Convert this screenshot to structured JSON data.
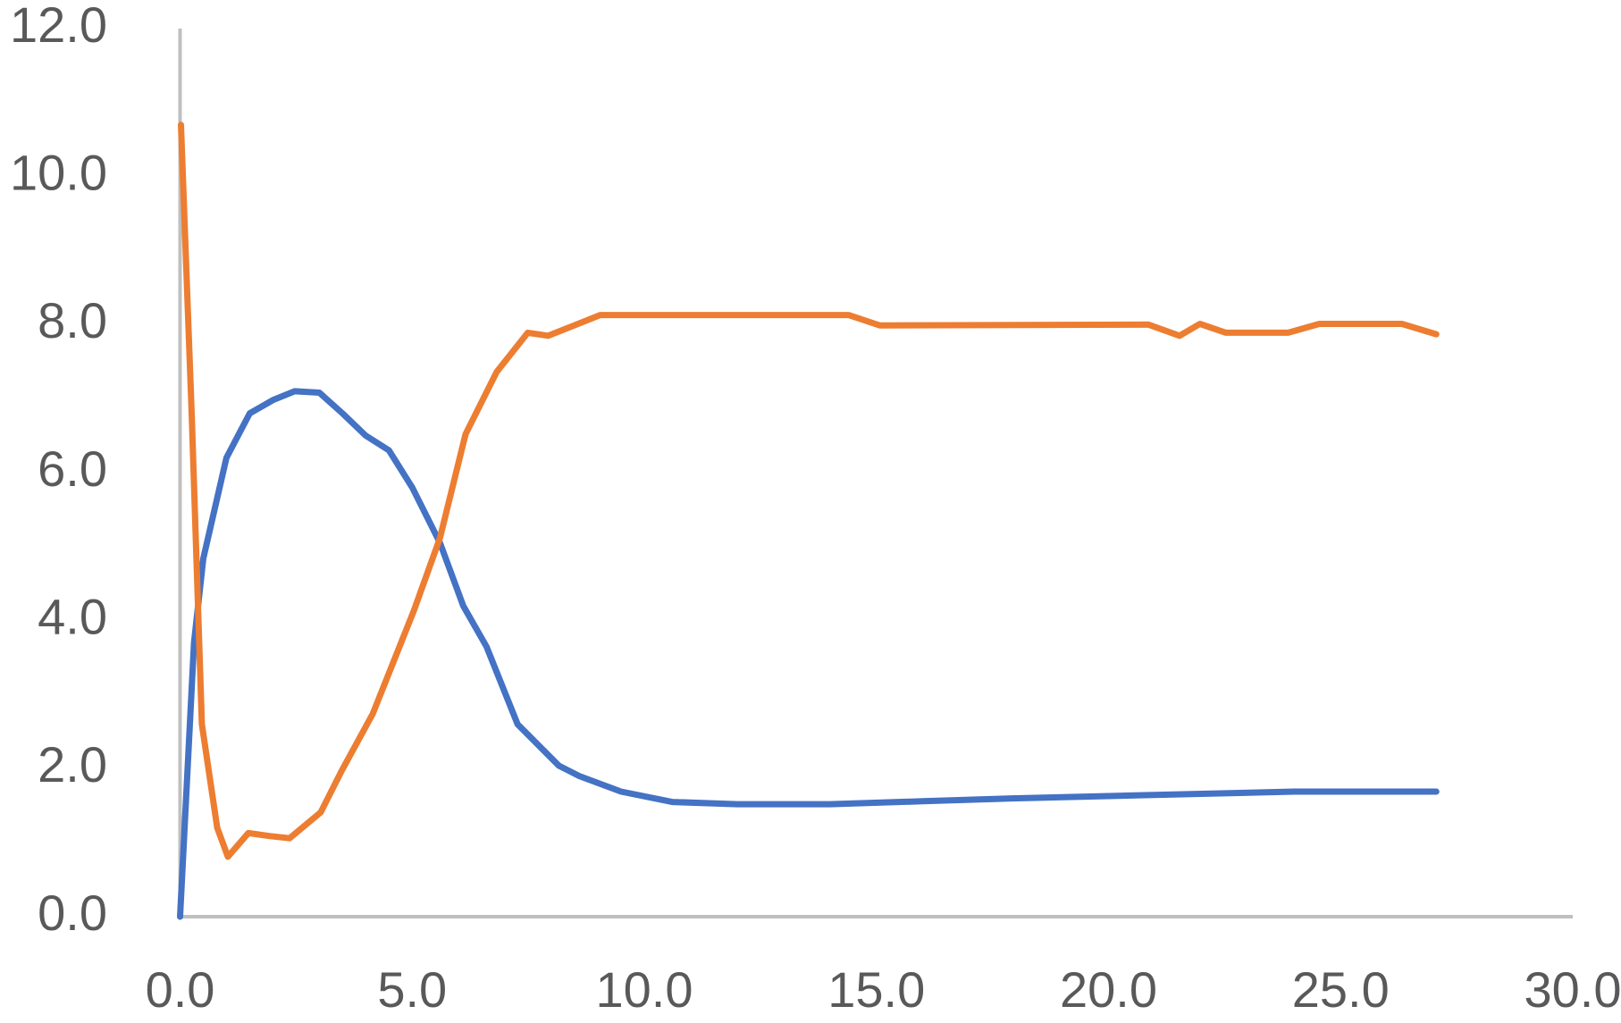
{
  "chart_data": {
    "type": "line",
    "series": [
      {
        "color": "#4472c4",
        "x": [
          0,
          0.3,
          0.5,
          1.0,
          1.5,
          2.0,
          2.47,
          3.0,
          3.5,
          4.0,
          4.5,
          5.0,
          5.6,
          6.1,
          6.6,
          7.27,
          8.16,
          8.6,
          9.5,
          10.6,
          12.0,
          14.0,
          16.0,
          18.0,
          20.0,
          22.0,
          24.0,
          27.06
        ],
        "values": [
          0,
          3.7,
          4.84,
          6.2,
          6.8,
          6.98,
          7.1,
          7.08,
          6.8,
          6.5,
          6.3,
          5.8,
          5.05,
          4.2,
          3.65,
          2.6,
          2.04,
          1.9,
          1.69,
          1.55,
          1.52,
          1.52,
          1.56,
          1.6,
          1.63,
          1.66,
          1.69,
          1.69
        ]
      },
      {
        "color": "#ed7d31",
        "x": [
          0.02,
          0.25,
          0.47,
          0.8,
          1.03,
          1.47,
          1.92,
          2.36,
          3.03,
          3.48,
          4.15,
          5.04,
          5.6,
          6.15,
          6.82,
          7.49,
          7.93,
          9.05,
          14.4,
          15.07,
          20.86,
          21.53,
          21.97,
          22.53,
          23.87,
          24.54,
          26.32,
          27.06
        ],
        "values": [
          10.7,
          6.8,
          2.6,
          1.2,
          0.81,
          1.13,
          1.09,
          1.06,
          1.41,
          1.97,
          2.74,
          4.14,
          5.12,
          6.52,
          7.36,
          7.89,
          7.85,
          8.13,
          8.13,
          7.99,
          8.0,
          7.85,
          8.01,
          7.89,
          7.89,
          8.01,
          8.01,
          7.87
        ]
      }
    ],
    "xlim": [
      0,
      30
    ],
    "xticks": [
      {
        "value": 0,
        "label": "0.0"
      },
      {
        "value": 5,
        "label": "5.0"
      },
      {
        "value": 10,
        "label": "10.0"
      },
      {
        "value": 15,
        "label": "15.0"
      },
      {
        "value": 20,
        "label": "20.0"
      },
      {
        "value": 25,
        "label": "25.0"
      },
      {
        "value": 30,
        "label": "30.0"
      }
    ],
    "ylim": [
      0,
      12
    ],
    "yticks": [
      {
        "value": 0,
        "label": "0.0"
      },
      {
        "value": 2,
        "label": "2.0"
      },
      {
        "value": 4,
        "label": "4.0"
      },
      {
        "value": 6,
        "label": "6.0"
      },
      {
        "value": 8,
        "label": "8.0"
      },
      {
        "value": 10,
        "label": "10.0"
      },
      {
        "value": 12,
        "label": "12.0"
      }
    ]
  }
}
